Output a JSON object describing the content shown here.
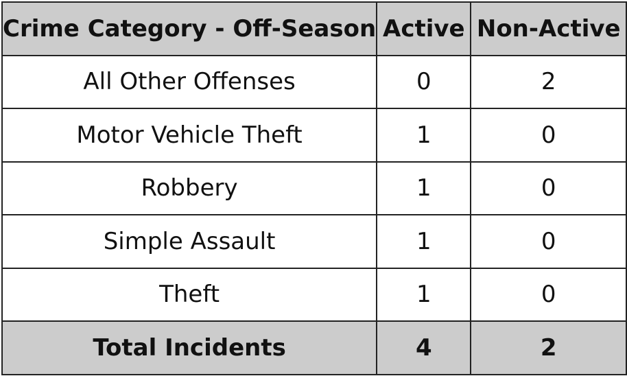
{
  "table": {
    "headers": [
      "Crime Category - Off-Season",
      "Active",
      "Non-Active"
    ],
    "rows": [
      {
        "category": "All Other Offenses",
        "active": "0",
        "non_active": "2"
      },
      {
        "category": "Motor Vehicle Theft",
        "active": "1",
        "non_active": "0"
      },
      {
        "category": "Robbery",
        "active": "1",
        "non_active": "0"
      },
      {
        "category": "Simple Assault",
        "active": "1",
        "non_active": "0"
      },
      {
        "category": "Theft",
        "active": "1",
        "non_active": "0"
      }
    ],
    "total": {
      "label": "Total Incidents",
      "active": "4",
      "non_active": "2"
    },
    "colors": {
      "header_bg": "#cccccc",
      "border": "#222222",
      "cell_bg": "#ffffff"
    }
  }
}
